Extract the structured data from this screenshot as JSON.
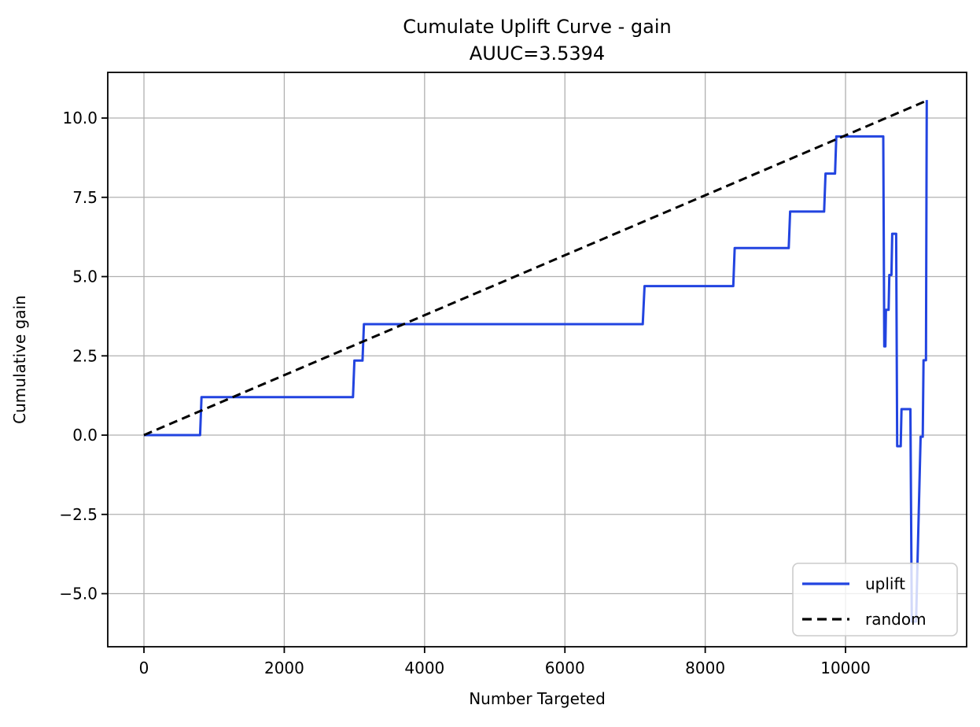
{
  "chart_data": {
    "type": "line",
    "title": "Cumulate Uplift Curve - gain",
    "subtitle": "AUUC=3.5394",
    "auuc": 3.5394,
    "xlabel": "Number Targeted",
    "ylabel": "Cumulative gain",
    "xlim": [
      -516,
      11726
    ],
    "ylim": [
      -6.674,
      11.44
    ],
    "grid": true,
    "x_tick_values": [
      0,
      2000,
      4000,
      6000,
      8000,
      10000
    ],
    "x_tick_labels": [
      "0",
      "2000",
      "4000",
      "6000",
      "8000",
      "10000"
    ],
    "y_tick_values": [
      10.0,
      7.5,
      5.0,
      2.5,
      0.0,
      -2.5,
      -5.0
    ],
    "y_tick_labels": [
      "10.0",
      "7.5",
      "5.0",
      "2.5",
      "0.0",
      "−2.5",
      "−5.0"
    ],
    "colors": {
      "uplift_line": "#2244e0",
      "random_line": "#000000",
      "grid": "#b0b0b0",
      "spine": "#000000",
      "legend_border": "#cccccc"
    },
    "legend": {
      "position": "lower right",
      "entries": [
        {
          "label": "uplift",
          "style": "solid",
          "color": "#2244e0"
        },
        {
          "label": "random",
          "style": "dashed",
          "color": "#000000"
        }
      ]
    },
    "series": [
      {
        "name": "uplift",
        "style": "solid",
        "color": "#2244e0",
        "points": [
          [
            0,
            0.0
          ],
          [
            800,
            0.0
          ],
          [
            820,
            1.2
          ],
          [
            2980,
            1.2
          ],
          [
            3000,
            2.35
          ],
          [
            3115,
            2.35
          ],
          [
            3135,
            3.5
          ],
          [
            7110,
            3.5
          ],
          [
            7135,
            4.7
          ],
          [
            8400,
            4.7
          ],
          [
            8420,
            5.9
          ],
          [
            9190,
            5.9
          ],
          [
            9210,
            7.05
          ],
          [
            9695,
            7.05
          ],
          [
            9715,
            8.25
          ],
          [
            9850,
            8.25
          ],
          [
            9868,
            9.42
          ],
          [
            10538,
            9.42
          ],
          [
            10552,
            2.8
          ],
          [
            10568,
            2.8
          ],
          [
            10576,
            3.95
          ],
          [
            10614,
            3.95
          ],
          [
            10624,
            5.05
          ],
          [
            10654,
            5.05
          ],
          [
            10665,
            6.35
          ],
          [
            10722,
            6.35
          ],
          [
            10736,
            -0.35
          ],
          [
            10786,
            -0.35
          ],
          [
            10798,
            0.82
          ],
          [
            10925,
            0.82
          ],
          [
            10945,
            -5.88
          ],
          [
            11005,
            -5.88
          ],
          [
            11070,
            -0.05
          ],
          [
            11100,
            -0.05
          ],
          [
            11112,
            2.36
          ],
          [
            11146,
            2.36
          ],
          [
            11158,
            10.57
          ]
        ]
      },
      {
        "name": "random",
        "style": "dashed",
        "color": "#000000",
        "points": [
          [
            0,
            0.0
          ],
          [
            11158,
            10.55
          ]
        ]
      }
    ]
  }
}
